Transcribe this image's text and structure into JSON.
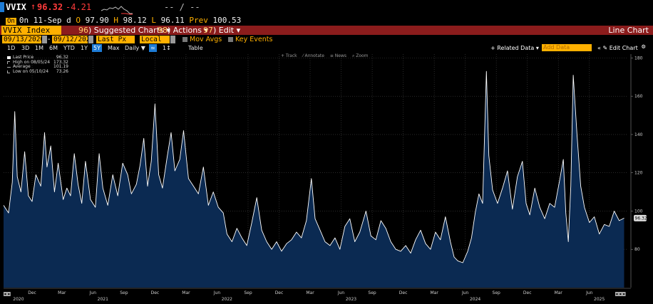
{
  "quote": {
    "ticker": "VVIX",
    "arrow": "↑",
    "last": "96.32",
    "change": "-4.21",
    "dashes": "-- / --",
    "line2": {
      "badge": "On",
      "time": "0n 11-Sep d",
      "open_label": "O",
      "open": "97.90",
      "high_label": "H",
      "high": "98.12",
      "low_label": "L",
      "low": "96.11",
      "prev_label": "Prev",
      "prev": "100.53"
    }
  },
  "menu_bar": {
    "index_field": "VVIX Index",
    "suggested_num": "96",
    "suggested": "Suggested Charts",
    "actions_num": "98",
    "actions": "Actions",
    "edit_num": "97",
    "edit": "Edit",
    "view_label": "Line Chart"
  },
  "controls": {
    "start_date": "09/13/2020",
    "end_date": "09/12/2025",
    "field": "Last Px",
    "currency": "Local CCY",
    "mov_avgs": "Mov Avgs",
    "key_events": "Key Events"
  },
  "ranges": {
    "items": [
      "1D",
      "3D",
      "1M",
      "6M",
      "YTD",
      "1Y",
      "5Y",
      "Max"
    ],
    "selected": "5Y",
    "period": "Daily",
    "table": "Table",
    "related_data": "+ Related Data",
    "add_data_placeholder": "Add Data",
    "edit_chart": "Edit Chart"
  },
  "mini_toolbar": [
    "+ Track",
    "⁄ Annotate",
    "≡ News",
    "⌕ Zoom"
  ],
  "legend": [
    {
      "name": "Last Price",
      "value": "96.32",
      "color": "#ffffff"
    },
    {
      "name": "High on 08/05/24",
      "value": "173.32",
      "color": ""
    },
    {
      "name": "Average",
      "value": "101.19",
      "color": ""
    },
    {
      "name": "Low on 05/10/24",
      "value": "73.26",
      "color": ""
    }
  ],
  "colors": {
    "line": "#ffffff",
    "fill": "#0b2a52",
    "grid": "#444444",
    "last_badge": "#dddddd",
    "accent": "#ffb000",
    "menu_red": "#8b1c1c"
  },
  "chart_data": {
    "type": "line",
    "x_labels": [
      "Dec",
      "Mar",
      "Jun",
      "Sep",
      "Dec",
      "Mar",
      "Jun",
      "Sep",
      "Dec",
      "Mar",
      "Jun",
      "Sep",
      "Dec",
      "Mar",
      "Jun",
      "Sep",
      "Dec",
      "Mar",
      "Jun"
    ],
    "year_labels": [
      "2020",
      "2021",
      "2022",
      "2023",
      "2024",
      "2025"
    ],
    "ylim": [
      60,
      182
    ],
    "y_ticks": [
      80,
      100,
      120,
      140,
      160,
      180
    ],
    "last_value_label": "96.32",
    "series": [
      {
        "values": [
          [
            2020.7,
            103
          ],
          [
            2020.74,
            99
          ],
          [
            2020.77,
            115
          ],
          [
            2020.79,
            152
          ],
          [
            2020.81,
            118
          ],
          [
            2020.84,
            110
          ],
          [
            2020.87,
            131
          ],
          [
            2020.9,
            108
          ],
          [
            2020.93,
            105
          ],
          [
            2020.96,
            119
          ],
          [
            2021.0,
            113
          ],
          [
            2021.03,
            141
          ],
          [
            2021.05,
            123
          ],
          [
            2021.08,
            134
          ],
          [
            2021.11,
            110
          ],
          [
            2021.14,
            125
          ],
          [
            2021.18,
            106
          ],
          [
            2021.21,
            112
          ],
          [
            2021.24,
            108
          ],
          [
            2021.27,
            130
          ],
          [
            2021.3,
            114
          ],
          [
            2021.33,
            104
          ],
          [
            2021.36,
            126
          ],
          [
            2021.4,
            106
          ],
          [
            2021.44,
            102
          ],
          [
            2021.47,
            130
          ],
          [
            2021.5,
            112
          ],
          [
            2021.54,
            103
          ],
          [
            2021.58,
            119
          ],
          [
            2021.62,
            108
          ],
          [
            2021.66,
            125
          ],
          [
            2021.7,
            119
          ],
          [
            2021.73,
            109
          ],
          [
            2021.77,
            114
          ],
          [
            2021.8,
            124
          ],
          [
            2021.83,
            138
          ],
          [
            2021.86,
            113
          ],
          [
            2021.89,
            126
          ],
          [
            2021.92,
            156
          ],
          [
            2021.95,
            119
          ],
          [
            2021.98,
            112
          ],
          [
            2022.02,
            129
          ],
          [
            2022.05,
            141
          ],
          [
            2022.08,
            121
          ],
          [
            2022.12,
            127
          ],
          [
            2022.15,
            142
          ],
          [
            2022.19,
            117
          ],
          [
            2022.23,
            113
          ],
          [
            2022.27,
            109
          ],
          [
            2022.31,
            123
          ],
          [
            2022.35,
            103
          ],
          [
            2022.39,
            110
          ],
          [
            2022.43,
            102
          ],
          [
            2022.47,
            99
          ],
          [
            2022.5,
            88
          ],
          [
            2022.54,
            84
          ],
          [
            2022.58,
            91
          ],
          [
            2022.62,
            86
          ],
          [
            2022.66,
            82
          ],
          [
            2022.7,
            94
          ],
          [
            2022.74,
            107
          ],
          [
            2022.78,
            90
          ],
          [
            2022.82,
            84
          ],
          [
            2022.86,
            80
          ],
          [
            2022.9,
            84
          ],
          [
            2022.94,
            79
          ],
          [
            2022.98,
            83
          ],
          [
            2023.02,
            85
          ],
          [
            2023.06,
            89
          ],
          [
            2023.1,
            86
          ],
          [
            2023.14,
            95
          ],
          [
            2023.18,
            117
          ],
          [
            2023.21,
            96
          ],
          [
            2023.25,
            90
          ],
          [
            2023.29,
            84
          ],
          [
            2023.33,
            82
          ],
          [
            2023.37,
            86
          ],
          [
            2023.41,
            80
          ],
          [
            2023.45,
            92
          ],
          [
            2023.49,
            96
          ],
          [
            2023.53,
            84
          ],
          [
            2023.57,
            89
          ],
          [
            2023.62,
            100
          ],
          [
            2023.66,
            87
          ],
          [
            2023.7,
            85
          ],
          [
            2023.74,
            95
          ],
          [
            2023.78,
            91
          ],
          [
            2023.82,
            84
          ],
          [
            2023.86,
            80
          ],
          [
            2023.9,
            79
          ],
          [
            2023.94,
            82
          ],
          [
            2023.98,
            78
          ],
          [
            2024.02,
            85
          ],
          [
            2024.06,
            90
          ],
          [
            2024.1,
            83
          ],
          [
            2024.14,
            80
          ],
          [
            2024.18,
            89
          ],
          [
            2024.22,
            85
          ],
          [
            2024.26,
            97
          ],
          [
            2024.3,
            84
          ],
          [
            2024.33,
            76
          ],
          [
            2024.36,
            74
          ],
          [
            2024.4,
            73
          ],
          [
            2024.44,
            79
          ],
          [
            2024.47,
            86
          ],
          [
            2024.5,
            99
          ],
          [
            2024.53,
            109
          ],
          [
            2024.56,
            104
          ],
          [
            2024.59,
            173
          ],
          [
            2024.61,
            129
          ],
          [
            2024.64,
            111
          ],
          [
            2024.68,
            104
          ],
          [
            2024.72,
            112
          ],
          [
            2024.76,
            121
          ],
          [
            2024.8,
            101
          ],
          [
            2024.84,
            118
          ],
          [
            2024.88,
            126
          ],
          [
            2024.91,
            104
          ],
          [
            2024.94,
            98
          ],
          [
            2024.98,
            112
          ],
          [
            2025.02,
            102
          ],
          [
            2025.06,
            96
          ],
          [
            2025.1,
            104
          ],
          [
            2025.14,
            102
          ],
          [
            2025.18,
            116
          ],
          [
            2025.21,
            127
          ],
          [
            2025.23,
            99
          ],
          [
            2025.25,
            84
          ],
          [
            2025.27,
            113
          ],
          [
            2025.29,
            171
          ],
          [
            2025.32,
            140
          ],
          [
            2025.35,
            113
          ],
          [
            2025.38,
            102
          ],
          [
            2025.42,
            94
          ],
          [
            2025.46,
            97
          ],
          [
            2025.5,
            88
          ],
          [
            2025.54,
            93
          ],
          [
            2025.58,
            92
          ],
          [
            2025.62,
            100
          ],
          [
            2025.66,
            95
          ],
          [
            2025.7,
            96.32
          ]
        ]
      }
    ]
  }
}
